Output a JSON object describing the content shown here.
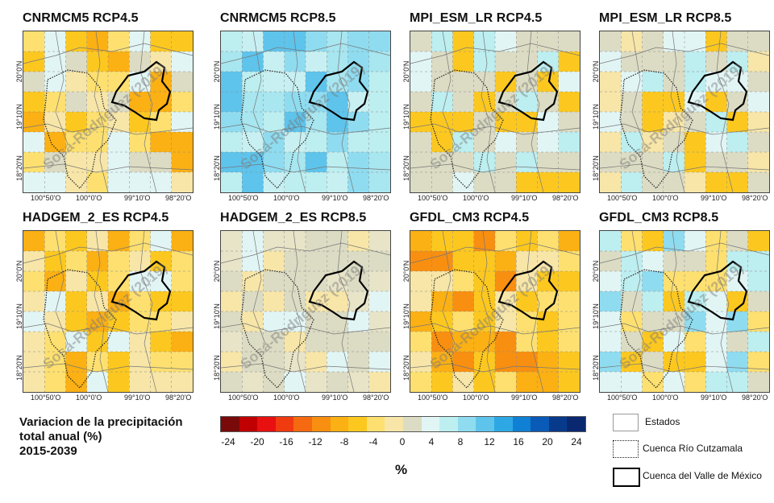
{
  "panels": [
    {
      "title": "CNRMCM5 RCP4.5",
      "scheme": "warm1"
    },
    {
      "title": "CNRMCM5 RCP8.5",
      "scheme": "cool1"
    },
    {
      "title": "MPI_ESM_LR RCP4.5",
      "scheme": "mixed1"
    },
    {
      "title": "MPI_ESM_LR RCP8.5",
      "scheme": "mixed2"
    },
    {
      "title": "HADGEM_2_ES RCP4.5",
      "scheme": "warm2"
    },
    {
      "title": "HADGEM_2_ES RCP8.5",
      "scheme": "neutral"
    },
    {
      "title": "GFDL_CM3 RCP4.5",
      "scheme": "warm3"
    },
    {
      "title": "GFDL_CM3 RCP8.5",
      "scheme": "mixed3"
    }
  ],
  "x_ticks": [
    "100°50'O",
    "100°0'O",
    "99°10'O",
    "98°20'O"
  ],
  "y_ticks": [
    "20°0'N",
    "19°10'N",
    "18°20'N"
  ],
  "watermark": "Sosa-Rodriguez (2019)",
  "legend": {
    "title_lines": [
      "Variacion de la precipitación",
      "total anual (%)",
      "2015-2039"
    ],
    "unit": "%",
    "colorbar_labels": [
      "-24",
      "-20",
      "-16",
      "-12",
      "-8",
      "-4",
      "0",
      "4",
      "8",
      "12",
      "16",
      "20",
      "24"
    ],
    "colors": [
      "#7a0a0a",
      "#c00000",
      "#e81010",
      "#f03a10",
      "#f56a10",
      "#f88f10",
      "#fbb014",
      "#fcc820",
      "#fde070",
      "#f7e6a8",
      "#dcdcc4",
      "#e2f5f5",
      "#bdeef0",
      "#8fdcf0",
      "#5ec4ec",
      "#2ea8e4",
      "#1080d4",
      "#0a5ab8",
      "#083a8c",
      "#0a2870"
    ],
    "keys": [
      {
        "label": "Estados",
        "style": "states"
      },
      {
        "label": "Cuenca Río Cutzamala",
        "style": "dotted"
      },
      {
        "label": "Cuenca del Valle de México",
        "style": "thick"
      }
    ]
  }
}
